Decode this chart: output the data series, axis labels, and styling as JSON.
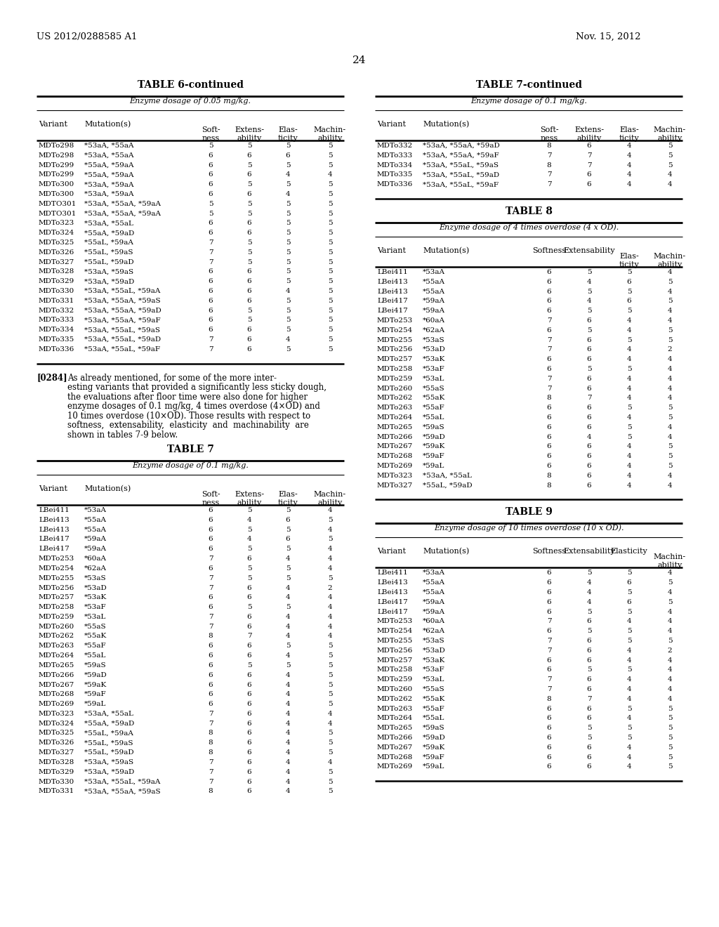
{
  "header_left": "US 2012/0288585 A1",
  "header_right": "Nov. 15, 2012",
  "page_number": "24",
  "table6_title": "TABLE 6-continued",
  "table6_subtitle": "Enzyme dosage of 0.05 mg/kg.",
  "table6_data": [
    [
      "MDTo298",
      "*53aA, *55aA",
      "5",
      "5",
      "5",
      "5"
    ],
    [
      "MDTo298",
      "*53aA, *55aA",
      "6",
      "6",
      "6",
      "5"
    ],
    [
      "MDTo299",
      "*55aA, *59aA",
      "6",
      "5",
      "5",
      "5"
    ],
    [
      "MDTo299",
      "*55aA, *59aA",
      "6",
      "6",
      "4",
      "4"
    ],
    [
      "MDTo300",
      "*53aA, *59aA",
      "6",
      "5",
      "5",
      "5"
    ],
    [
      "MDTo300",
      "*53aA, *59aA",
      "6",
      "6",
      "4",
      "5"
    ],
    [
      "MDTO301",
      "*53aA, *55aA, *59aA",
      "5",
      "5",
      "5",
      "5"
    ],
    [
      "MDTO301",
      "*53aA, *55aA, *59aA",
      "5",
      "5",
      "5",
      "5"
    ],
    [
      "MDTo323",
      "*53aA, *55aL",
      "6",
      "6",
      "5",
      "5"
    ],
    [
      "MDTo324",
      "*55aA, *59aD",
      "6",
      "6",
      "5",
      "5"
    ],
    [
      "MDTo325",
      "*55aL, *59aA",
      "7",
      "5",
      "5",
      "5"
    ],
    [
      "MDTo326",
      "*55aL, *59aS",
      "7",
      "5",
      "5",
      "5"
    ],
    [
      "MDTo327",
      "*55aL, *59aD",
      "7",
      "5",
      "5",
      "5"
    ],
    [
      "MDTo328",
      "*53aA, *59aS",
      "6",
      "6",
      "5",
      "5"
    ],
    [
      "MDTo329",
      "*53aA, *59aD",
      "6",
      "6",
      "5",
      "5"
    ],
    [
      "MDTo330",
      "*53aA, *55aL, *59aA",
      "6",
      "6",
      "4",
      "5"
    ],
    [
      "MDTo331",
      "*53aA, *55aA, *59aS",
      "6",
      "6",
      "5",
      "5"
    ],
    [
      "MDTo332",
      "*53aA, *55aA, *59aD",
      "6",
      "5",
      "5",
      "5"
    ],
    [
      "MDTo333",
      "*53aA, *55aA, *59aF",
      "6",
      "5",
      "5",
      "5"
    ],
    [
      "MDTo334",
      "*53aA, *55aL, *59aS",
      "6",
      "6",
      "5",
      "5"
    ],
    [
      "MDTo335",
      "*53aA, *55aL, *59aD",
      "7",
      "6",
      "4",
      "5"
    ],
    [
      "MDTo336",
      "*53aA, *55aL, *59aF",
      "7",
      "6",
      "5",
      "5"
    ]
  ],
  "table7_title": "TABLE 7",
  "table7_subtitle": "Enzyme dosage of 0.1 mg/kg.",
  "table7_data": [
    [
      "LBei411",
      "*53aA",
      "6",
      "5",
      "5",
      "4"
    ],
    [
      "LBei413",
      "*55aA",
      "6",
      "4",
      "6",
      "5"
    ],
    [
      "LBei413",
      "*55aA",
      "6",
      "5",
      "5",
      "4"
    ],
    [
      "LBei417",
      "*59aA",
      "6",
      "4",
      "6",
      "5"
    ],
    [
      "LBei417",
      "*59aA",
      "6",
      "5",
      "5",
      "4"
    ],
    [
      "MDTo253",
      "*60aA",
      "7",
      "6",
      "4",
      "4"
    ],
    [
      "MDTo254",
      "*62aA",
      "6",
      "5",
      "5",
      "4"
    ],
    [
      "MDTo255",
      "*53aS",
      "7",
      "5",
      "5",
      "5"
    ],
    [
      "MDTo256",
      "*53aD",
      "7",
      "6",
      "4",
      "2"
    ],
    [
      "MDTo257",
      "*53aK",
      "6",
      "6",
      "4",
      "4"
    ],
    [
      "MDTo258",
      "*53aF",
      "6",
      "5",
      "5",
      "4"
    ],
    [
      "MDTo259",
      "*53aL",
      "7",
      "6",
      "4",
      "4"
    ],
    [
      "MDTo260",
      "*55aS",
      "7",
      "6",
      "4",
      "4"
    ],
    [
      "MDTo262",
      "*55aK",
      "8",
      "7",
      "4",
      "4"
    ],
    [
      "MDTo263",
      "*55aF",
      "6",
      "6",
      "5",
      "5"
    ],
    [
      "MDTo264",
      "*55aL",
      "6",
      "6",
      "4",
      "5"
    ],
    [
      "MDTo265",
      "*59aS",
      "6",
      "5",
      "5",
      "5"
    ],
    [
      "MDTo266",
      "*59aD",
      "6",
      "6",
      "4",
      "5"
    ],
    [
      "MDTo267",
      "*59aK",
      "6",
      "6",
      "4",
      "5"
    ],
    [
      "MDTo268",
      "*59aF",
      "6",
      "6",
      "4",
      "5"
    ],
    [
      "MDTo269",
      "*59aL",
      "6",
      "6",
      "4",
      "5"
    ],
    [
      "MDTo323",
      "*53aA, *55aL",
      "7",
      "6",
      "4",
      "4"
    ],
    [
      "MDTo324",
      "*55aA, *59aD",
      "7",
      "6",
      "4",
      "4"
    ],
    [
      "MDTo325",
      "*55aL, *59aA",
      "8",
      "6",
      "4",
      "5"
    ],
    [
      "MDTo326",
      "*55aL, *59aS",
      "8",
      "6",
      "4",
      "5"
    ],
    [
      "MDTo327",
      "*55aL, *59aD",
      "8",
      "6",
      "4",
      "5"
    ],
    [
      "MDTo328",
      "*53aA, *59aS",
      "7",
      "6",
      "4",
      "4"
    ],
    [
      "MDTo329",
      "*53aA, *59aD",
      "7",
      "6",
      "4",
      "5"
    ],
    [
      "MDTo330",
      "*53aA, *55aL, *59aA",
      "7",
      "6",
      "4",
      "5"
    ],
    [
      "MDTo331",
      "*53aA, *55aA, *59aS",
      "8",
      "6",
      "4",
      "5"
    ]
  ],
  "table7_continued_title": "TABLE 7-continued",
  "table7_continued_subtitle": "Enzyme dosage of 0.1 mg/kg.",
  "table7_continued_data": [
    [
      "MDTo332",
      "*53aA, *55aA, *59aD",
      "8",
      "6",
      "4",
      "5"
    ],
    [
      "MDTo333",
      "*53aA, *55aA, *59aF",
      "7",
      "7",
      "4",
      "5"
    ],
    [
      "MDTo334",
      "*53aA, *55aL, *59aS",
      "8",
      "7",
      "4",
      "5"
    ],
    [
      "MDTo335",
      "*53aA, *55aL, *59aD",
      "7",
      "6",
      "4",
      "4"
    ],
    [
      "MDTo336",
      "*53aA, *55aL, *59aF",
      "7",
      "6",
      "4",
      "4"
    ]
  ],
  "table8_title": "TABLE 8",
  "table8_subtitle": "Enzyme dosage of 4 times overdose (4 x OD).",
  "table8_data": [
    [
      "LBei411",
      "*53aA",
      "6",
      "5",
      "5",
      "4"
    ],
    [
      "LBei413",
      "*55aA",
      "6",
      "4",
      "6",
      "5"
    ],
    [
      "LBei413",
      "*55aA",
      "6",
      "5",
      "5",
      "4"
    ],
    [
      "LBei417",
      "*59aA",
      "6",
      "4",
      "6",
      "5"
    ],
    [
      "LBei417",
      "*59aA",
      "6",
      "5",
      "5",
      "4"
    ],
    [
      "MDTo253",
      "*60aA",
      "7",
      "6",
      "4",
      "4"
    ],
    [
      "MDTo254",
      "*62aA",
      "6",
      "5",
      "4",
      "5"
    ],
    [
      "MDTo255",
      "*53aS",
      "7",
      "6",
      "5",
      "5"
    ],
    [
      "MDTo256",
      "*53aD",
      "7",
      "6",
      "4",
      "2"
    ],
    [
      "MDTo257",
      "*53aK",
      "6",
      "6",
      "4",
      "4"
    ],
    [
      "MDTo258",
      "*53aF",
      "6",
      "5",
      "5",
      "4"
    ],
    [
      "MDTo259",
      "*53aL",
      "7",
      "6",
      "4",
      "4"
    ],
    [
      "MDTo260",
      "*55aS",
      "7",
      "6",
      "4",
      "4"
    ],
    [
      "MDTo262",
      "*55aK",
      "8",
      "7",
      "4",
      "4"
    ],
    [
      "MDTo263",
      "*55aF",
      "6",
      "6",
      "5",
      "5"
    ],
    [
      "MDTo264",
      "*55aL",
      "6",
      "6",
      "4",
      "5"
    ],
    [
      "MDTo265",
      "*59aS",
      "6",
      "6",
      "5",
      "4"
    ],
    [
      "MDTo266",
      "*59aD",
      "6",
      "4",
      "5",
      "4"
    ],
    [
      "MDTo267",
      "*59aK",
      "6",
      "6",
      "4",
      "5"
    ],
    [
      "MDTo268",
      "*59aF",
      "6",
      "6",
      "4",
      "5"
    ],
    [
      "MDTo269",
      "*59aL",
      "6",
      "6",
      "4",
      "5"
    ],
    [
      "MDTo323",
      "*53aA, *55aL",
      "8",
      "6",
      "4",
      "4"
    ],
    [
      "MDTo327",
      "*55aL, *59aD",
      "8",
      "6",
      "4",
      "4"
    ]
  ],
  "table9_title": "TABLE 9",
  "table9_subtitle": "Enzyme dosage of 10 times overdose (10 x OD).",
  "table9_data": [
    [
      "LBei411",
      "*53aA",
      "6",
      "5",
      "5",
      "4"
    ],
    [
      "LBei413",
      "*55aA",
      "6",
      "4",
      "6",
      "5"
    ],
    [
      "LBei413",
      "*55aA",
      "6",
      "4",
      "5",
      "4"
    ],
    [
      "LBei417",
      "*59aA",
      "6",
      "4",
      "6",
      "5"
    ],
    [
      "LBei417",
      "*59aA",
      "6",
      "5",
      "5",
      "4"
    ],
    [
      "MDTo253",
      "*60aA",
      "7",
      "6",
      "4",
      "4"
    ],
    [
      "MDTo254",
      "*62aA",
      "6",
      "5",
      "5",
      "4"
    ],
    [
      "MDTo255",
      "*53aS",
      "7",
      "6",
      "5",
      "5"
    ],
    [
      "MDTo256",
      "*53aD",
      "7",
      "6",
      "4",
      "2"
    ],
    [
      "MDTo257",
      "*53aK",
      "6",
      "6",
      "4",
      "4"
    ],
    [
      "MDTo258",
      "*53aF",
      "6",
      "5",
      "5",
      "4"
    ],
    [
      "MDTo259",
      "*53aL",
      "7",
      "6",
      "4",
      "4"
    ],
    [
      "MDTo260",
      "*55aS",
      "7",
      "6",
      "4",
      "4"
    ],
    [
      "MDTo262",
      "*55aK",
      "8",
      "7",
      "4",
      "4"
    ],
    [
      "MDTo263",
      "*55aF",
      "6",
      "6",
      "5",
      "5"
    ],
    [
      "MDTo264",
      "*55aL",
      "6",
      "6",
      "4",
      "5"
    ],
    [
      "MDTo265",
      "*59aS",
      "6",
      "5",
      "5",
      "5"
    ],
    [
      "MDTo266",
      "*59aD",
      "6",
      "5",
      "5",
      "5"
    ],
    [
      "MDTo267",
      "*59aK",
      "6",
      "6",
      "4",
      "5"
    ],
    [
      "MDTo268",
      "*59aF",
      "6",
      "6",
      "4",
      "5"
    ],
    [
      "MDTo269",
      "*59aL",
      "6",
      "6",
      "4",
      "5"
    ]
  ]
}
